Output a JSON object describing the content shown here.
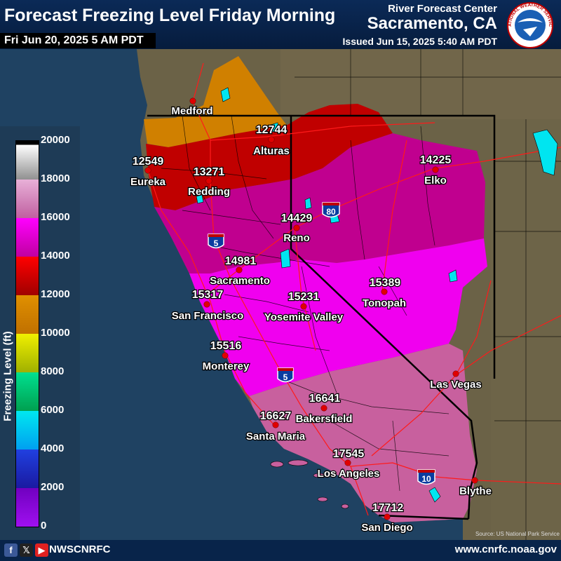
{
  "header": {
    "title": "Forecast Freezing Level Friday Morning",
    "subtitle": "Fri Jun 20, 2025 5 AM PDT",
    "office_line1": "River Forecast Center",
    "office_line2": "Sacramento, CA",
    "issued": "Issued Jun 15, 2025 5:40 AM PDT",
    "logo_text": "NATIONAL WEATHER SERVICE"
  },
  "legend": {
    "label": "Freezing Level (ft)",
    "ticks": [
      "20000",
      "18000",
      "16000",
      "14000",
      "12000",
      "10000",
      "8000",
      "6000",
      "4000",
      "2000",
      "0"
    ]
  },
  "map": {
    "stations": [
      {
        "name": "Medford",
        "value": ""
      },
      {
        "name": "Alturas",
        "value": "12744"
      },
      {
        "name": "Eureka",
        "value": "12549"
      },
      {
        "name": "Redding",
        "value": "13271"
      },
      {
        "name": "Elko",
        "value": "14225"
      },
      {
        "name": "Reno",
        "value": "14429"
      },
      {
        "name": "Sacramento",
        "value": "14981"
      },
      {
        "name": "Tonopah",
        "value": "15389"
      },
      {
        "name": "San Francisco",
        "value": "15317"
      },
      {
        "name": "Yosemite Valley",
        "value": "15231"
      },
      {
        "name": "Monterey",
        "value": "15516"
      },
      {
        "name": "Las Vegas",
        "value": ""
      },
      {
        "name": "Bakersfield",
        "value": "16641"
      },
      {
        "name": "Santa Maria",
        "value": "16627"
      },
      {
        "name": "Los Angeles",
        "value": "17545"
      },
      {
        "name": "Blythe",
        "value": ""
      },
      {
        "name": "San Diego",
        "value": "17712"
      }
    ],
    "interstates": [
      "80",
      "5",
      "5",
      "10"
    ],
    "credit": "Source: US National Park Service"
  },
  "footer": {
    "handle": "NWSCNRFC",
    "website": "www.cnrfc.noaa.gov",
    "icons": [
      "facebook-icon",
      "x-icon",
      "youtube-icon"
    ]
  }
}
